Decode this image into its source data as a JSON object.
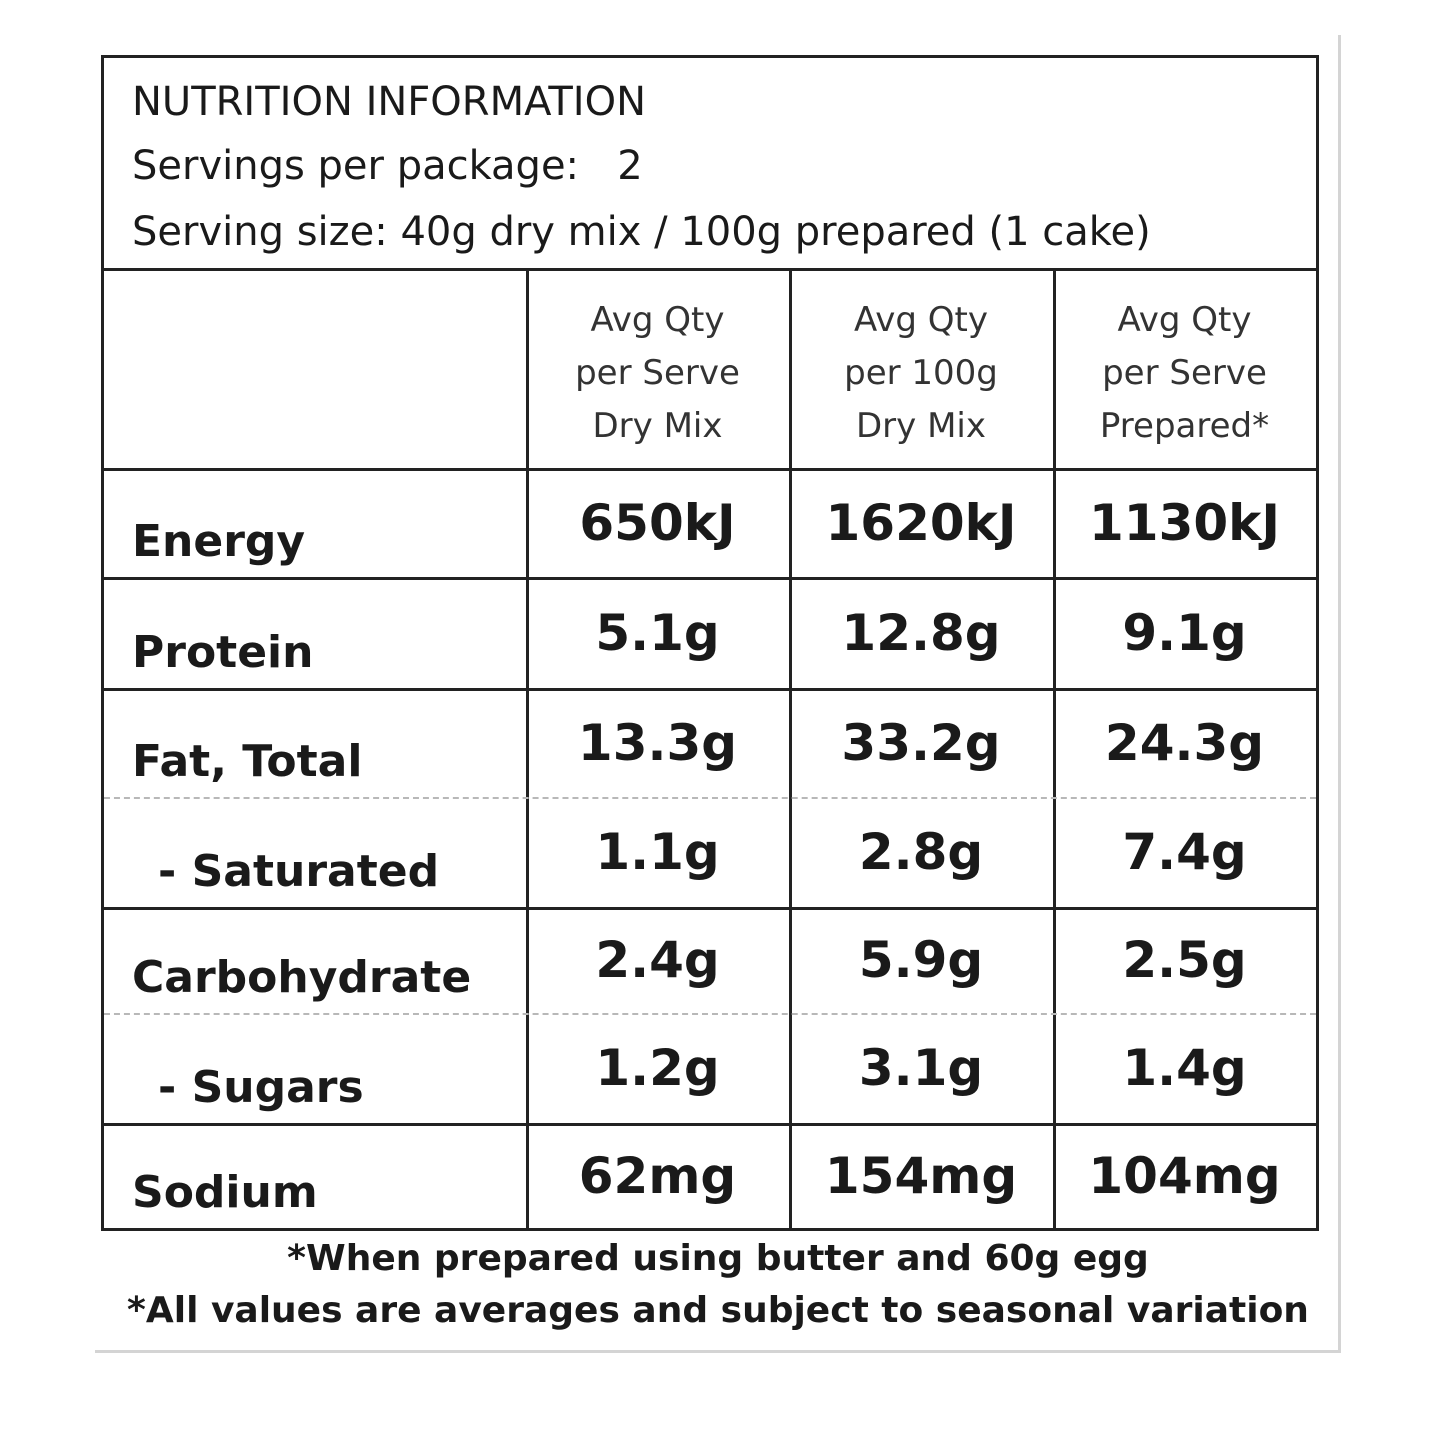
{
  "header": {
    "title": "NUTRITION INFORMATION",
    "servings_label": "Servings per package:",
    "servings_value": "2",
    "serving_size": "Serving size: 40g dry mix / 100g prepared (1 cake)"
  },
  "table": {
    "columns": [
      [
        "Avg Qty",
        "per Serve",
        "Dry Mix"
      ],
      [
        "Avg Qty",
        "per 100g",
        "Dry Mix"
      ],
      [
        "Avg Qty",
        "per Serve",
        "Prepared*"
      ]
    ],
    "rows": [
      {
        "label": "Energy",
        "values": [
          "650kJ",
          "1620kJ",
          "1130kJ"
        ]
      },
      {
        "label": "Protein",
        "values": [
          "5.1g",
          "12.8g",
          "9.1g"
        ]
      },
      {
        "label": "Fat, Total",
        "values": [
          "13.3g",
          "33.2g",
          "24.3g"
        ]
      },
      {
        "label": "- Saturated",
        "values": [
          "1.1g",
          "2.8g",
          "7.4g"
        ]
      },
      {
        "label": "Carbohydrate",
        "values": [
          "2.4g",
          "5.9g",
          "2.5g"
        ]
      },
      {
        "label": "- Sugars",
        "values": [
          "1.2g",
          "3.1g",
          "1.4g"
        ]
      },
      {
        "label": "Sodium",
        "values": [
          "62mg",
          "154mg",
          "104mg"
        ]
      }
    ]
  },
  "footnotes": [
    "*When prepared using butter and 60g egg",
    "*All values are averages and subject to seasonal variation"
  ]
}
